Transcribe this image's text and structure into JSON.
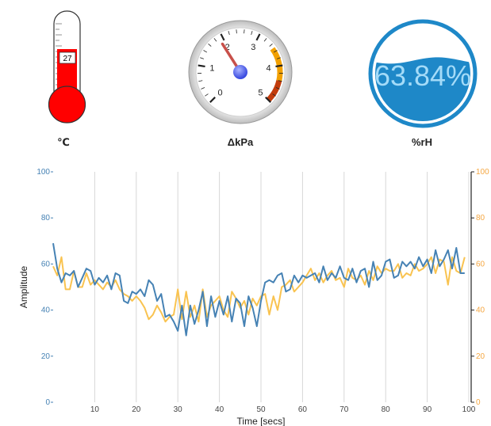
{
  "widgets": {
    "thermometer": {
      "value": "27",
      "level": 27,
      "unit": "℃",
      "color": "#ff0000"
    },
    "gauge": {
      "unit": "ΔkPa",
      "value": 1.9,
      "min": 0,
      "max": 5,
      "tick_labels": [
        "0",
        "1",
        "2",
        "3",
        "4",
        "5"
      ],
      "hub_color": "#4d5df0",
      "needle_color": "#c8504a",
      "band_colors": [
        "#f2a000",
        "#c23c0c"
      ]
    },
    "liquid": {
      "value_text": "63.84%",
      "level": 0.6384,
      "unit": "%rH",
      "color": "#1e88c8"
    }
  },
  "chart_data": {
    "type": "line",
    "xlabel": "Time [secs]",
    "ylabel": "Amplitude",
    "xlim": [
      0,
      100
    ],
    "ylim_left": [
      0,
      100
    ],
    "ylim_right": [
      0,
      100
    ],
    "x_ticks": [
      10,
      20,
      30,
      40,
      50,
      60,
      70,
      80,
      90,
      100
    ],
    "y_ticks_left": [
      0,
      20,
      40,
      60,
      80,
      100
    ],
    "y_ticks_right": [
      0,
      20,
      40,
      60,
      80,
      100
    ],
    "left_axis_color": "#4682b4",
    "right_axis_color": "#f5a742",
    "grid": "vertical",
    "series": [
      {
        "axis": "left",
        "color": "#4682b4",
        "x": [
          0,
          1,
          2,
          3,
          4,
          5,
          6,
          7,
          8,
          9,
          10,
          11,
          12,
          13,
          14,
          15,
          16,
          17,
          18,
          19,
          20,
          21,
          22,
          23,
          24,
          25,
          26,
          27,
          28,
          29,
          30,
          31,
          32,
          33,
          34,
          35,
          36,
          37,
          38,
          39,
          40,
          41,
          42,
          43,
          44,
          45,
          46,
          47,
          48,
          49,
          50,
          51,
          52,
          53,
          54,
          55,
          56,
          57,
          58,
          59,
          60,
          61,
          62,
          63,
          64,
          65,
          66,
          67,
          68,
          69,
          70,
          71,
          72,
          73,
          74,
          75,
          76,
          77,
          78,
          79,
          80,
          81,
          82,
          83,
          84,
          85,
          86,
          87,
          88,
          89,
          90,
          91,
          92,
          93,
          94,
          95,
          96,
          97,
          98,
          99
        ],
        "values": [
          69,
          58,
          52,
          56,
          55,
          57,
          50,
          54,
          58,
          57,
          51,
          54,
          52,
          55,
          49,
          56,
          55,
          44,
          43,
          48,
          47,
          49,
          46,
          53,
          51,
          44,
          47,
          37,
          38,
          35,
          31,
          42,
          29,
          42,
          34,
          40,
          48,
          33,
          46,
          37,
          44,
          38,
          46,
          35,
          45,
          43,
          33,
          46,
          41,
          33,
          44,
          52,
          53,
          52,
          55,
          56,
          48,
          49,
          55,
          52,
          55,
          54,
          55,
          56,
          52,
          59,
          53,
          56,
          54,
          59,
          54,
          53,
          58,
          52,
          57,
          58,
          50,
          61,
          53,
          55,
          61,
          62,
          54,
          55,
          61,
          59,
          61,
          58,
          63,
          59,
          62,
          56,
          66,
          59,
          62,
          66,
          58,
          67,
          56,
          56
        ]
      },
      {
        "axis": "right",
        "color": "#f9c350",
        "x": [
          0,
          1,
          2,
          3,
          4,
          5,
          6,
          7,
          8,
          9,
          10,
          11,
          12,
          13,
          14,
          15,
          16,
          17,
          18,
          19,
          20,
          21,
          22,
          23,
          24,
          25,
          26,
          27,
          28,
          29,
          30,
          31,
          32,
          33,
          34,
          35,
          36,
          37,
          38,
          39,
          40,
          41,
          42,
          43,
          44,
          45,
          46,
          47,
          48,
          49,
          50,
          51,
          52,
          53,
          54,
          55,
          56,
          57,
          58,
          59,
          60,
          61,
          62,
          63,
          64,
          65,
          66,
          67,
          68,
          69,
          70,
          71,
          72,
          73,
          74,
          75,
          76,
          77,
          78,
          79,
          80,
          81,
          82,
          83,
          84,
          85,
          86,
          87,
          88,
          89,
          90,
          91,
          92,
          93,
          94,
          95,
          96,
          97,
          98,
          99
        ],
        "values": [
          59,
          55,
          63,
          49,
          49,
          57,
          50,
          50,
          56,
          51,
          53,
          51,
          49,
          52,
          50,
          53,
          49,
          47,
          46,
          44,
          46,
          44,
          41,
          36,
          38,
          42,
          39,
          35,
          37,
          38,
          49,
          36,
          48,
          37,
          42,
          35,
          49,
          37,
          42,
          44,
          46,
          40,
          37,
          48,
          45,
          41,
          44,
          38,
          45,
          42,
          46,
          47,
          38,
          46,
          40,
          50,
          51,
          53,
          48,
          50,
          52,
          55,
          58,
          53,
          56,
          52,
          55,
          57,
          53,
          54,
          50,
          58,
          54,
          53,
          55,
          51,
          57,
          53,
          59,
          56,
          58,
          57,
          57,
          60,
          54,
          56,
          55,
          60,
          57,
          58,
          60,
          63,
          56,
          62,
          61,
          51,
          63,
          57,
          56,
          63
        ]
      }
    ]
  }
}
